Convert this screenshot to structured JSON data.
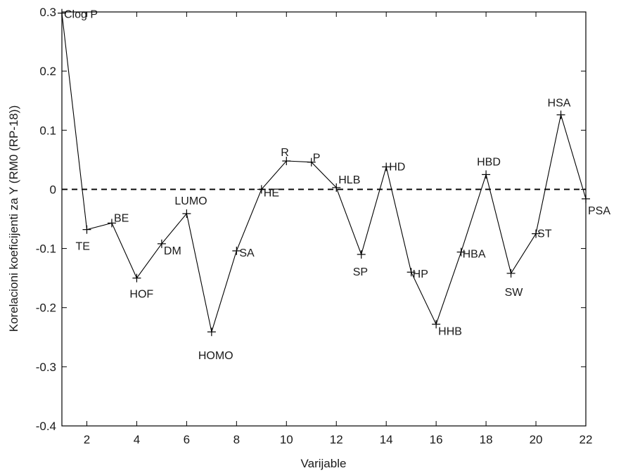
{
  "chart_data": {
    "type": "line",
    "title": "",
    "xlabel": "Varijable",
    "ylabel": "Korelacioni koeficijenti za Y (RM0 (RP-18))",
    "xlim": [
      1,
      22
    ],
    "ylim": [
      -0.4,
      0.3
    ],
    "x_ticks": [
      2,
      4,
      6,
      8,
      10,
      12,
      14,
      16,
      18,
      20,
      22
    ],
    "x_tick_labels": [
      "2",
      "4",
      "6",
      "8",
      "10",
      "12",
      "14",
      "16",
      "18",
      "20",
      "22"
    ],
    "y_ticks": [
      0.3,
      0.2,
      0.1,
      0,
      -0.1,
      -0.2,
      -0.3,
      -0.4
    ],
    "y_tick_labels": [
      "0.3",
      "0.2",
      "0.1",
      "0",
      "-0.1",
      "-0.2",
      "-0.3",
      "-0.4"
    ],
    "grid": false,
    "legend": "none",
    "marker": "+",
    "line_color": "#000000",
    "reference_line": {
      "y": 0,
      "style": "dashed"
    },
    "points": [
      {
        "x": 1,
        "y": 0.298,
        "label": "Clog P"
      },
      {
        "x": 2,
        "y": -0.068,
        "label": "TE"
      },
      {
        "x": 3,
        "y": -0.057,
        "label": "BE"
      },
      {
        "x": 4,
        "y": -0.15,
        "label": "HOF"
      },
      {
        "x": 5,
        "y": -0.092,
        "label": "DM"
      },
      {
        "x": 6,
        "y": -0.041,
        "label": "LUMO"
      },
      {
        "x": 7,
        "y": -0.241,
        "label": "HOMO"
      },
      {
        "x": 8,
        "y": -0.104,
        "label": "SA"
      },
      {
        "x": 9,
        "y": 0.0,
        "label": "HE"
      },
      {
        "x": 10,
        "y": 0.048,
        "label": "R"
      },
      {
        "x": 11,
        "y": 0.046,
        "label": "P"
      },
      {
        "x": 12,
        "y": 0.003,
        "label": "HLB"
      },
      {
        "x": 13,
        "y": -0.11,
        "label": "SP"
      },
      {
        "x": 14,
        "y": 0.038,
        "label": "HD"
      },
      {
        "x": 15,
        "y": -0.14,
        "label": "HP"
      },
      {
        "x": 16,
        "y": -0.228,
        "label": "HHB"
      },
      {
        "x": 17,
        "y": -0.106,
        "label": "HBA"
      },
      {
        "x": 18,
        "y": 0.025,
        "label": "HBD"
      },
      {
        "x": 19,
        "y": -0.142,
        "label": "SW"
      },
      {
        "x": 20,
        "y": -0.075,
        "label": "ST"
      },
      {
        "x": 21,
        "y": 0.126,
        "label": "HSA"
      },
      {
        "x": 22,
        "y": -0.016,
        "label": "PSA"
      }
    ]
  }
}
